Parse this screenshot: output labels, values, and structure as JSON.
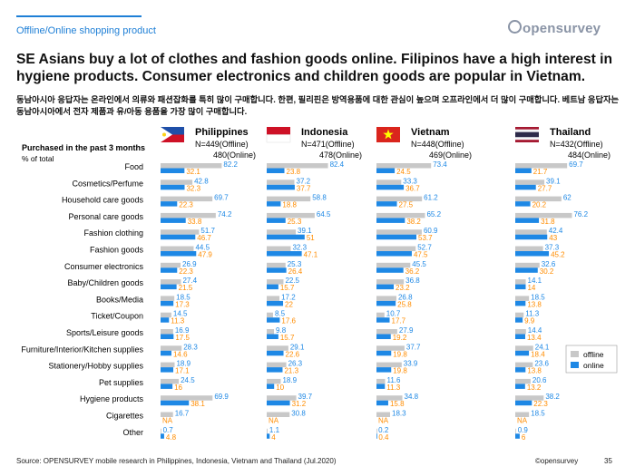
{
  "header": {
    "topic": "Offline/Online shopping product",
    "logo_text": "opensurvey"
  },
  "title": "SE Asians buy a lot of clothes and fashion goods online. Filipinos have a high interest in hygiene products. Consumer electronics and children goods are popular in Vietnam.",
  "subtitle": "동남아시아 응답자는 온라인에서 의류와 패션잡화를 특히 많이 구매합니다. 한편, 필리핀은 방역용품에 대한 관심이 높으며 오프라인에서 더 많이 구매합니다. 베트남 응답자는 동남아시아에서 전자 제품과 유/아동 용품을 가장 많이 구매합니다.",
  "footer": {
    "source": "Source: OPENSURVEY mobile research in Philippines, Indonesia, Vietnam and Thailand (Jul.2020)",
    "brand": "©opensurvey",
    "page": "35"
  },
  "colors": {
    "offline": "#c8c8c8",
    "online": "#1e88e5",
    "online_label": "#ff8c00",
    "offline_label": "#1e88e5"
  },
  "chart_data": {
    "type": "bar",
    "orientation": "horizontal",
    "ylabel": "Purchased in the past 3 months",
    "unit_label": "% of total",
    "legend": {
      "position": "right",
      "entries": [
        "offline",
        "online"
      ]
    },
    "categories": [
      "Food",
      "Cosmetics/Perfume",
      "Household care goods",
      "Personal care goods",
      "Fashion clothing",
      "Fashion goods",
      "Consumer electronics",
      "Baby/Children goods",
      "Books/Media",
      "Ticket/Coupon",
      "Sports/Leisure goods",
      "Furniture/Interior/Kitchen supplies",
      "Stationery/Hobby supplies",
      "Pet supplies",
      "Hygiene products",
      "Cigarettes",
      "Other"
    ],
    "panels": [
      {
        "country": "Philippines",
        "flag": "ph",
        "n_offline": "N=449(Offline)",
        "n_online": "480(Online)",
        "offline": [
          82.2,
          42.8,
          69.7,
          74.2,
          51.7,
          44.5,
          26.9,
          27.4,
          18.5,
          14.5,
          16.9,
          28.3,
          18.9,
          24.5,
          69.9,
          16.7,
          0.7
        ],
        "online": [
          32.1,
          32.3,
          22.3,
          33.8,
          46.7,
          47.9,
          22.3,
          21.5,
          17.3,
          11.3,
          17.5,
          14.6,
          17.1,
          16,
          38.1,
          "NA",
          4.8
        ]
      },
      {
        "country": "Indonesia",
        "flag": "id",
        "n_offline": "N=471(Offline)",
        "n_online": "478(Online)",
        "offline": [
          82.4,
          37.2,
          58.8,
          64.5,
          39.1,
          32.3,
          25.3,
          22.5,
          17.2,
          8.5,
          9.8,
          29.1,
          26.3,
          18.9,
          39.7,
          30.8,
          1.1
        ],
        "online": [
          23.8,
          37.7,
          18.8,
          25.3,
          51,
          47.1,
          26.4,
          15.7,
          22,
          17.6,
          15.7,
          22.6,
          21.3,
          10,
          31.2,
          "NA",
          4
        ]
      },
      {
        "country": "Vietnam",
        "flag": "vn",
        "n_offline": "N=448(Offline)",
        "n_online": "469(Online)",
        "offline": [
          73.4,
          33.3,
          61.2,
          65.2,
          60.9,
          52.7,
          45.5,
          36.8,
          26.8,
          10.7,
          27.9,
          37.7,
          33.9,
          11.6,
          34.8,
          18.3,
          0.2
        ],
        "online": [
          24.5,
          36.7,
          27.5,
          38.2,
          53.7,
          47.5,
          36.2,
          23.2,
          25.8,
          17.7,
          19.2,
          19.8,
          19.8,
          11.3,
          15.8,
          "NA",
          0.4
        ]
      },
      {
        "country": "Thailand",
        "flag": "th",
        "n_offline": "N=432(Offline)",
        "n_online": "484(Online)",
        "offline": [
          69.7,
          39.1,
          62.0,
          76.2,
          42.4,
          37.3,
          32.6,
          14.1,
          18.5,
          11.3,
          14.4,
          24.1,
          23.6,
          20.6,
          38.2,
          18.5,
          0.9
        ],
        "online": [
          21.7,
          27.7,
          20.2,
          31.8,
          43,
          45.2,
          30.2,
          14,
          13.8,
          9.9,
          13.4,
          18.4,
          13.8,
          13.2,
          22.3,
          "NA",
          6
        ]
      }
    ]
  }
}
